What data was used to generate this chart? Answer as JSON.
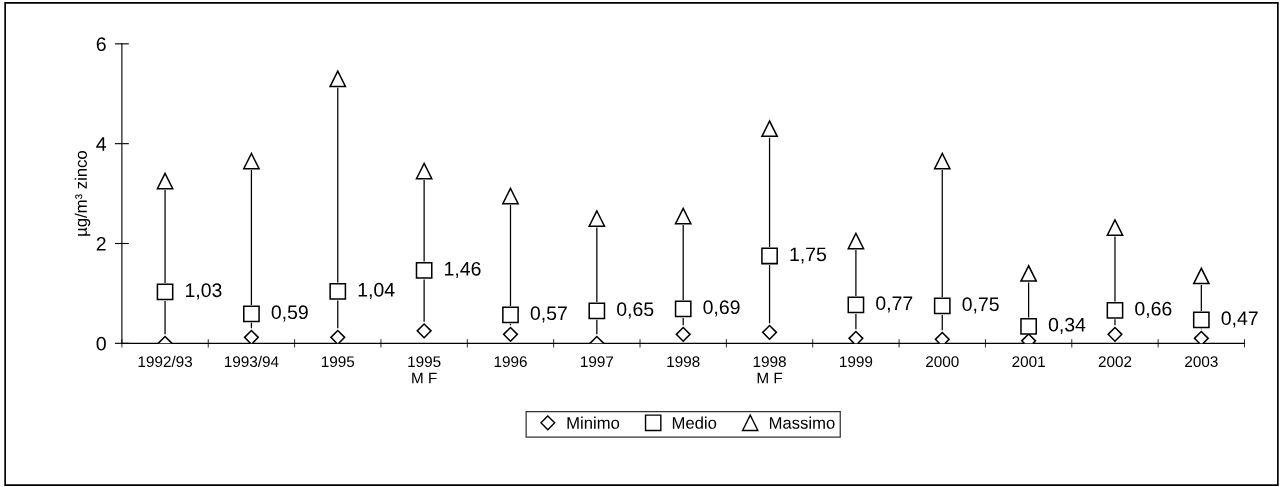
{
  "chart_data": {
    "type": "scatter",
    "ylabel": "µg/m³ zinco",
    "categories": [
      "1992/93",
      "1993/94",
      "1995",
      "1995\nM F",
      "1996",
      "1997",
      "1998",
      "1998\nM F",
      "1999",
      "2000",
      "2001",
      "2002",
      "2003"
    ],
    "series": [
      {
        "name": "Minimo",
        "color": "#000000",
        "marker": "diamond",
        "values": [
          0,
          0.12,
          0.12,
          0.25,
          0.18,
          0,
          0.18,
          0.22,
          0.1,
          0.08,
          0.05,
          0.18,
          0.1
        ]
      },
      {
        "name": "Medio",
        "color": "#000000",
        "marker": "square",
        "values": [
          1.03,
          0.59,
          1.04,
          1.46,
          0.57,
          0.65,
          0.69,
          1.75,
          0.77,
          0.75,
          0.34,
          0.66,
          0.47
        ],
        "value_labels": [
          "1,03",
          "0,59",
          "1,04",
          "1,46",
          "0,57",
          "0,65",
          "0,69",
          "1,75",
          "0,77",
          "0,75",
          "0,34",
          "0,66",
          "0,47"
        ]
      },
      {
        "name": "Massimo",
        "color": "#000000",
        "marker": "triangle",
        "values": [
          3.25,
          3.65,
          5.3,
          3.45,
          2.95,
          2.5,
          2.55,
          4.3,
          2.05,
          3.65,
          1.4,
          2.32,
          1.35
        ]
      }
    ],
    "ylim": [
      0,
      6
    ],
    "yticks": [
      0,
      2,
      4,
      6
    ],
    "legend": "bottom"
  }
}
